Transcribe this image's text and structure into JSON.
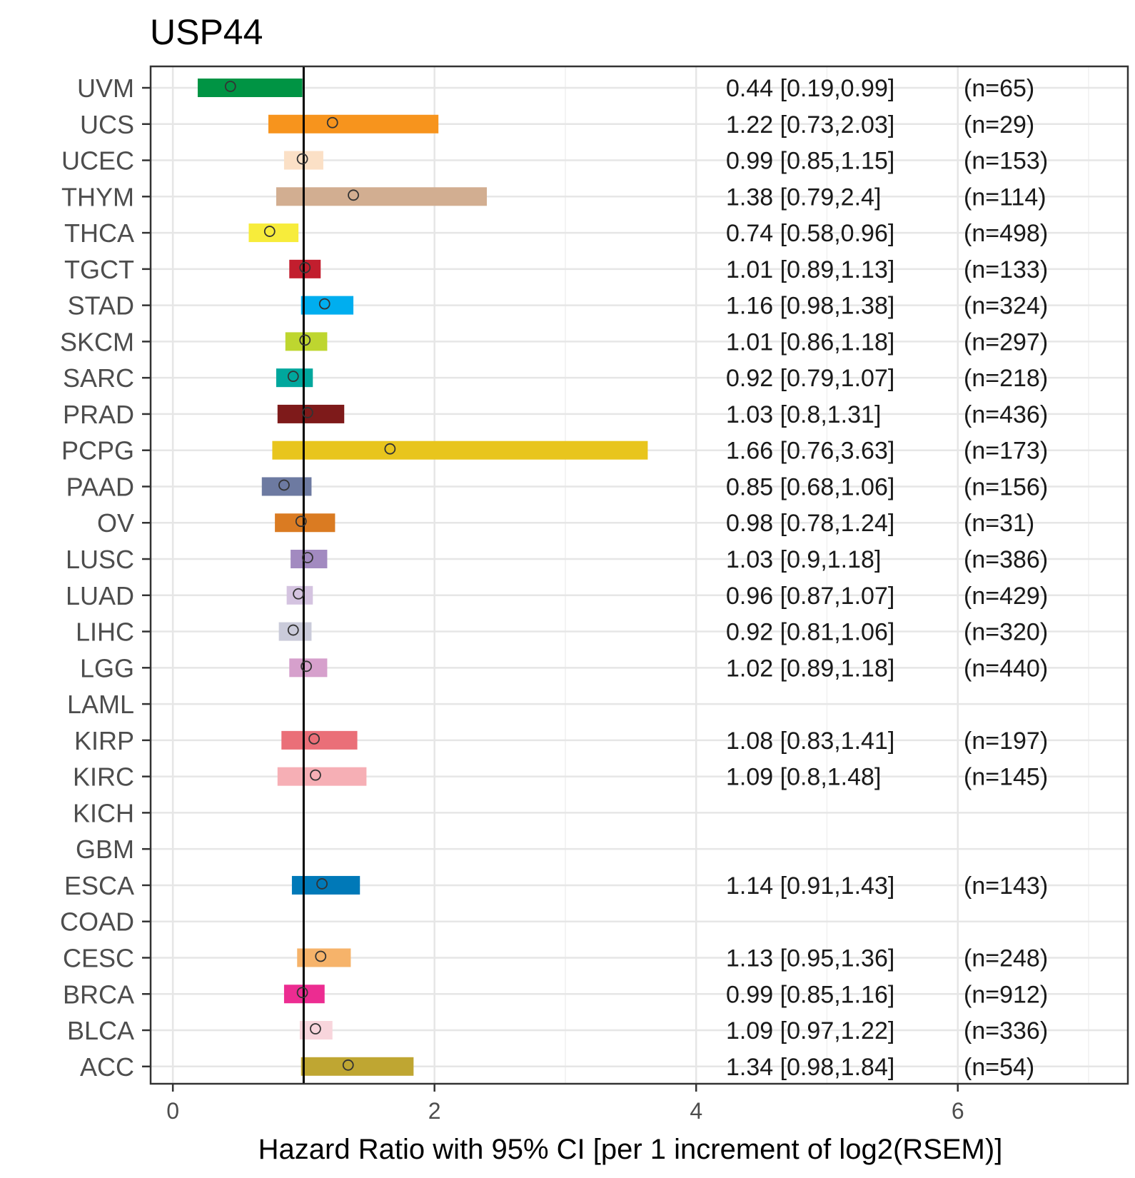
{
  "chart_data": {
    "type": "forest",
    "title": "USP44",
    "xlabel": "Hazard Ratio with 95% CI [per 1 increment of log2(RSEM)]",
    "ylabel": "",
    "xlim": [
      -0.17,
      7.3
    ],
    "x_ticks": [
      0,
      2,
      4,
      6
    ],
    "x_tick_labels": [
      "0",
      "2",
      "4",
      "6"
    ],
    "reference_line": 1,
    "grid": true,
    "legend": "none",
    "rows": [
      {
        "cancer": "UVM",
        "hr": 0.44,
        "lo": 0.19,
        "hi": 0.99,
        "label": "0.44 [0.19,0.99]",
        "n": "(n=65)",
        "color": "#009444"
      },
      {
        "cancer": "UCS",
        "hr": 1.22,
        "lo": 0.73,
        "hi": 2.03,
        "label": "1.22 [0.73,2.03]",
        "n": "(n=29)",
        "color": "#F7941D"
      },
      {
        "cancer": "UCEC",
        "hr": 0.99,
        "lo": 0.85,
        "hi": 1.15,
        "label": "0.99 [0.85,1.15]",
        "n": "(n=153)",
        "color": "#FBE0C6"
      },
      {
        "cancer": "THYM",
        "hr": 1.38,
        "lo": 0.79,
        "hi": 2.4,
        "label": "1.38 [0.79,2.4]",
        "n": "(n=114)",
        "color": "#D2AE91"
      },
      {
        "cancer": "THCA",
        "hr": 0.74,
        "lo": 0.58,
        "hi": 0.96,
        "label": "0.74 [0.58,0.96]",
        "n": "(n=498)",
        "color": "#F7EC3B"
      },
      {
        "cancer": "TGCT",
        "hr": 1.01,
        "lo": 0.89,
        "hi": 1.13,
        "label": "1.01 [0.89,1.13]",
        "n": "(n=133)",
        "color": "#C21E2E"
      },
      {
        "cancer": "STAD",
        "hr": 1.16,
        "lo": 0.98,
        "hi": 1.38,
        "label": "1.16 [0.98,1.38]",
        "n": "(n=324)",
        "color": "#00AEEF"
      },
      {
        "cancer": "SKCM",
        "hr": 1.01,
        "lo": 0.86,
        "hi": 1.18,
        "label": "1.01 [0.86,1.18]",
        "n": "(n=297)",
        "color": "#BED62F"
      },
      {
        "cancer": "SARC",
        "hr": 0.92,
        "lo": 0.79,
        "hi": 1.07,
        "label": "0.92 [0.79,1.07]",
        "n": "(n=218)",
        "color": "#00A79D"
      },
      {
        "cancer": "PRAD",
        "hr": 1.03,
        "lo": 0.8,
        "hi": 1.31,
        "label": "1.03 [0.8,1.31]",
        "n": "(n=436)",
        "color": "#7E1A1A"
      },
      {
        "cancer": "PCPG",
        "hr": 1.66,
        "lo": 0.76,
        "hi": 3.63,
        "label": "1.66 [0.76,3.63]",
        "n": "(n=173)",
        "color": "#E8C51D"
      },
      {
        "cancer": "PAAD",
        "hr": 0.85,
        "lo": 0.68,
        "hi": 1.06,
        "label": "0.85 [0.68,1.06]",
        "n": "(n=156)",
        "color": "#6D7AA1"
      },
      {
        "cancer": "OV",
        "hr": 0.98,
        "lo": 0.78,
        "hi": 1.24,
        "label": "0.98 [0.78,1.24]",
        "n": "(n=31)",
        "color": "#DA7B22"
      },
      {
        "cancer": "LUSC",
        "hr": 1.03,
        "lo": 0.9,
        "hi": 1.18,
        "label": "1.03 [0.9,1.18]",
        "n": "(n=386)",
        "color": "#A28AC0"
      },
      {
        "cancer": "LUAD",
        "hr": 0.96,
        "lo": 0.87,
        "hi": 1.07,
        "label": "0.96 [0.87,1.07]",
        "n": "(n=429)",
        "color": "#D4C3E0"
      },
      {
        "cancer": "LIHC",
        "hr": 0.92,
        "lo": 0.81,
        "hi": 1.06,
        "label": "0.92 [0.81,1.06]",
        "n": "(n=320)",
        "color": "#CACBDA"
      },
      {
        "cancer": "LGG",
        "hr": 1.02,
        "lo": 0.89,
        "hi": 1.18,
        "label": "1.02 [0.89,1.18]",
        "n": "(n=440)",
        "color": "#D6A0CC"
      },
      {
        "cancer": "LAML",
        "hr": null,
        "lo": null,
        "hi": null,
        "label": "",
        "n": "",
        "color": "#FFFFFF"
      },
      {
        "cancer": "KIRP",
        "hr": 1.08,
        "lo": 0.83,
        "hi": 1.41,
        "label": "1.08 [0.83,1.41]",
        "n": "(n=197)",
        "color": "#EA6F78"
      },
      {
        "cancer": "KIRC",
        "hr": 1.09,
        "lo": 0.8,
        "hi": 1.48,
        "label": "1.09 [0.8,1.48]",
        "n": "(n=145)",
        "color": "#F6AFB5"
      },
      {
        "cancer": "KICH",
        "hr": null,
        "lo": null,
        "hi": null,
        "label": "",
        "n": "",
        "color": "#FFFFFF"
      },
      {
        "cancer": "GBM",
        "hr": null,
        "lo": null,
        "hi": null,
        "label": "",
        "n": "",
        "color": "#FFFFFF"
      },
      {
        "cancer": "ESCA",
        "hr": 1.14,
        "lo": 0.91,
        "hi": 1.43,
        "label": "1.14 [0.91,1.43]",
        "n": "(n=143)",
        "color": "#0079B8"
      },
      {
        "cancer": "COAD",
        "hr": null,
        "lo": null,
        "hi": null,
        "label": "",
        "n": "",
        "color": "#FFFFFF"
      },
      {
        "cancer": "CESC",
        "hr": 1.13,
        "lo": 0.95,
        "hi": 1.36,
        "label": "1.13 [0.95,1.36]",
        "n": "(n=248)",
        "color": "#F6B36A"
      },
      {
        "cancer": "BRCA",
        "hr": 0.99,
        "lo": 0.85,
        "hi": 1.16,
        "label": "0.99 [0.85,1.16]",
        "n": "(n=912)",
        "color": "#EC2C91"
      },
      {
        "cancer": "BLCA",
        "hr": 1.09,
        "lo": 0.97,
        "hi": 1.22,
        "label": "1.09 [0.97,1.22]",
        "n": "(n=336)",
        "color": "#F8D5DC"
      },
      {
        "cancer": "ACC",
        "hr": 1.34,
        "lo": 0.98,
        "hi": 1.84,
        "label": "1.34 [0.98,1.84]",
        "n": "(n=54)",
        "color": "#BFA632"
      }
    ]
  }
}
